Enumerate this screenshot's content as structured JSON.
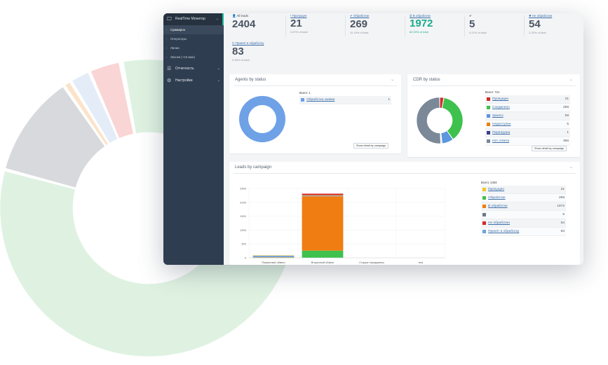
{
  "background_donut": {
    "segments": [
      {
        "value": 1972,
        "color": "#dff2e2"
      },
      {
        "value": 269,
        "color": "#d8d9dd"
      },
      {
        "value": 21,
        "color": "#fbe3c9"
      },
      {
        "value": 54,
        "color": "#e4ecf8"
      },
      {
        "value": 83,
        "color": "#fad5d5"
      },
      {
        "value": 5,
        "color": "#fbe6c6"
      }
    ]
  },
  "sidebar": {
    "items": [
      {
        "label": "RealTime Монитор",
        "icon": "monitor-icon",
        "active": true
      },
      {
        "label": "Отчетность",
        "icon": "list-icon",
        "active": false
      },
      {
        "label": "Настройки",
        "icon": "gears-icon",
        "active": false
      }
    ],
    "subitems": [
      {
        "label": "Суммарно",
        "selected": true
      },
      {
        "label": "Операторы",
        "selected": false
      },
      {
        "label": "Линии",
        "selected": false
      },
      {
        "label": "Звонки (+10 мин)",
        "selected": false
      }
    ]
  },
  "stats": [
    {
      "icon": "👤",
      "label": "All leads",
      "value": "2404",
      "pct": "",
      "teal": false,
      "link": false
    },
    {
      "icon": "!",
      "label": "Пропущен",
      "value": "21",
      "pct": "0.87% of total",
      "teal": false,
      "link": true
    },
    {
      "icon": "✔",
      "label": "Обработан",
      "value": "269",
      "pct": "11.19% of total",
      "teal": false,
      "link": true
    },
    {
      "icon": "⛭",
      "label": "В обработке",
      "value": "1972",
      "pct": "82.03% of total",
      "teal": true,
      "link": true
    },
    {
      "icon": "✔",
      "label": "",
      "value": "5",
      "pct": "0.21% of total",
      "teal": false,
      "link": false
    },
    {
      "icon": "✖",
      "label": "Не обработан",
      "value": "54",
      "pct": "2.25% of total",
      "teal": false,
      "link": true
    },
    {
      "icon": "↻",
      "label": "Принят в обработку",
      "value": "83",
      "pct": "3.45% of total",
      "teal": false,
      "link": true
    }
  ],
  "agents_panel": {
    "title": "Agents by status",
    "total_label": "Всего: 1",
    "items": [
      {
        "name": "Обработка заявки",
        "value": 1,
        "color": "#6fa1e6"
      }
    ],
    "button": "Show detail by campaign"
  },
  "cdr_panel": {
    "title": "CDR by status",
    "total_label": "Всего: 721",
    "items": [
      {
        "name": "Пропущен",
        "value": 21,
        "color": "#d12a2a"
      },
      {
        "name": "Соединено",
        "value": 269,
        "color": "#3ec14d"
      },
      {
        "name": "Занято",
        "value": 59,
        "color": "#5b96de"
      },
      {
        "name": "Недоступен",
        "value": 5,
        "color": "#f07d12"
      },
      {
        "name": "Перегрузка",
        "value": 1,
        "color": "#3b3f8c"
      },
      {
        "name": "Нет ответа",
        "value": 366,
        "color": "#7a8898"
      }
    ],
    "button": "Show detail by campaign"
  },
  "leads_panel": {
    "title": "Leads by campaign",
    "total_label": "Всего: 2404",
    "items": [
      {
        "name": "Пропущен",
        "value": 21,
        "color": "#f2c623"
      },
      {
        "name": "Обработан",
        "value": 269,
        "color": "#3ec14d"
      },
      {
        "name": "В обработке",
        "value": 1972,
        "color": "#f07d12"
      },
      {
        "name": "",
        "value": 5,
        "color": "#6c7a89"
      },
      {
        "name": "Не обработан",
        "value": 54,
        "color": "#d12a2a"
      },
      {
        "name": "Принят в обработку",
        "value": 83,
        "color": "#6fa1e6"
      }
    ]
  },
  "chart_data": {
    "type": "bar",
    "stacked": true,
    "categories": [
      "Первичный обзвон",
      "Вторичный обзвон",
      "Старые передзвоны",
      "test"
    ],
    "ylim": [
      0,
      2500
    ],
    "yticks": [
      0,
      500,
      1000,
      1500,
      2000,
      2500
    ],
    "series": [
      {
        "name": "Обработан",
        "color": "#3ec14d",
        "values": [
          10,
          259,
          0,
          0
        ]
      },
      {
        "name": "В обработке",
        "color": "#f07d12",
        "values": [
          12,
          1960,
          0,
          0
        ]
      },
      {
        "name": "Принят в обработку",
        "color": "#6fa1e6",
        "values": [
          60,
          23,
          0,
          0
        ]
      },
      {
        "name": "Пропущен",
        "color": "#f2c623",
        "values": [
          5,
          16,
          0,
          0
        ]
      },
      {
        "name": "Не обработан",
        "color": "#d12a2a",
        "values": [
          0,
          54,
          0,
          0
        ]
      }
    ]
  }
}
